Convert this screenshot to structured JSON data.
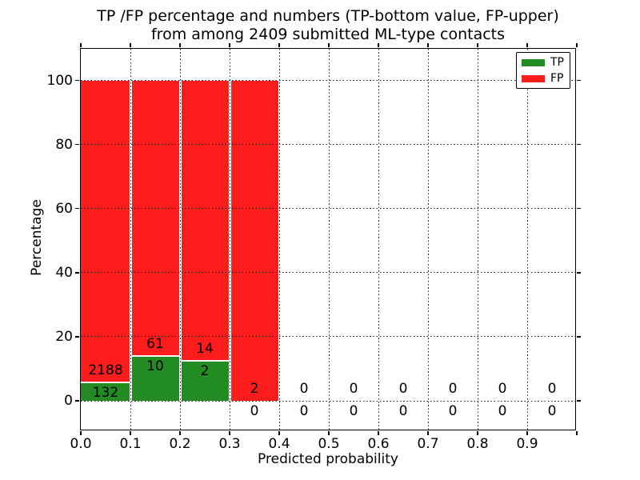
{
  "chart_data": {
    "type": "bar",
    "stacked": true,
    "title_line1": "TP /FP percentage and numbers (TP-bottom value, FP-upper)",
    "title_line2": "from among 2409 submitted ML-type contacts",
    "xlabel": "Predicted probability",
    "ylabel": "Percentage",
    "total_submitted": 2409,
    "x_tick_labels": [
      "0.0",
      "0.1",
      "0.2",
      "0.3",
      "0.4",
      "0.5",
      "0.6",
      "0.7",
      "0.8",
      "0.9"
    ],
    "y_ticks": [
      0,
      20,
      40,
      60,
      80,
      100
    ],
    "xlim": [
      0.0,
      1.0
    ],
    "ylim": [
      0,
      100
    ],
    "grid": "dotted, both axes",
    "legend_position": "upper right",
    "series": [
      {
        "name": "TP",
        "color": "#228b22"
      },
      {
        "name": "FP",
        "color": "#fc1c1c"
      }
    ],
    "bins": [
      {
        "x_range": [
          0.0,
          0.1
        ],
        "tp_count": 132,
        "fp_count": 2188
      },
      {
        "x_range": [
          0.1,
          0.2
        ],
        "tp_count": 10,
        "fp_count": 61
      },
      {
        "x_range": [
          0.2,
          0.3
        ],
        "tp_count": 2,
        "fp_count": 14
      },
      {
        "x_range": [
          0.3,
          0.4
        ],
        "tp_count": 0,
        "fp_count": 2
      },
      {
        "x_range": [
          0.4,
          0.5
        ],
        "tp_count": 0,
        "fp_count": 0
      },
      {
        "x_range": [
          0.5,
          0.6
        ],
        "tp_count": 0,
        "fp_count": 0
      },
      {
        "x_range": [
          0.6,
          0.7
        ],
        "tp_count": 0,
        "fp_count": 0
      },
      {
        "x_range": [
          0.7,
          0.8
        ],
        "tp_count": 0,
        "fp_count": 0
      },
      {
        "x_range": [
          0.8,
          0.9
        ],
        "tp_count": 0,
        "fp_count": 0
      },
      {
        "x_range": [
          0.9,
          1.0
        ],
        "tp_count": 0,
        "fp_count": 0
      }
    ],
    "bar_value_note": "each non-empty bin stacked to 100%; green = tp/(tp+fp), red = fp/(tp+fp)"
  },
  "legend": {
    "tp_label": "TP",
    "fp_label": "FP"
  },
  "colors": {
    "tp": "#228b22",
    "fp": "#fc1c1c",
    "grid": "#222222",
    "spine": "#000000",
    "background": "#ffffff",
    "text": "#000000"
  }
}
